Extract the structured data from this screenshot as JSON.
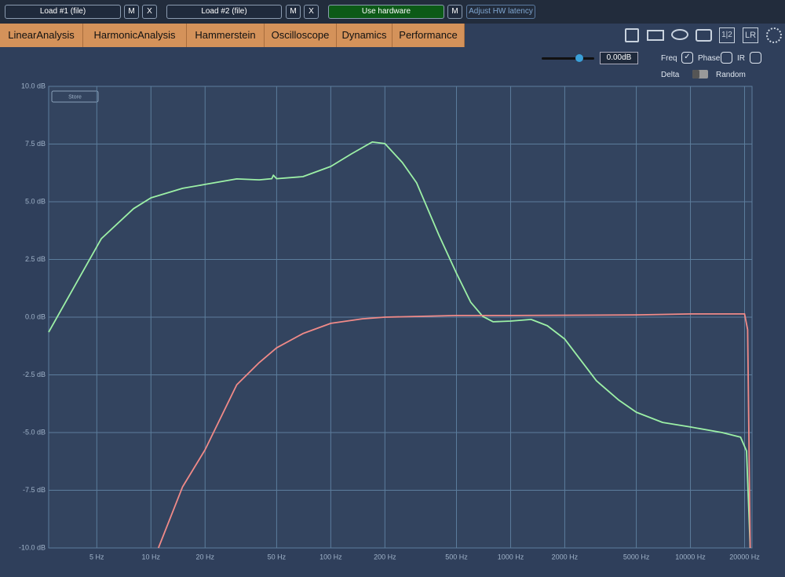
{
  "toolbar": {
    "buttons": [
      "Load #1 (file)",
      "M",
      "X",
      "Load #2 (file)",
      "M",
      "X",
      "Use hardware",
      "M",
      "Adjust HW latency"
    ]
  },
  "tabs": [
    "LinearAnalysis",
    "HarmonicAnalysis",
    "Hammerstein",
    "Oscilloscope",
    "Dynamics",
    "Performance"
  ],
  "icons": [
    "1|2",
    "LR"
  ],
  "controls": {
    "gain": "0.00dB",
    "checkboxes": [
      {
        "label": "Freq",
        "checked": true
      },
      {
        "label": "Phase",
        "checked": false
      },
      {
        "label": "IR",
        "checked": false
      }
    ],
    "delta": "Delta",
    "random": "Random"
  },
  "store_button": "Store",
  "chart_data": {
    "type": "line",
    "log_x": true,
    "grid": true,
    "xlim": [
      2.7,
      22000
    ],
    "ylim": [
      -10,
      10
    ],
    "xticks": [
      {
        "value": 5,
        "label": "5 Hz"
      },
      {
        "value": 10,
        "label": "10 Hz"
      },
      {
        "value": 20,
        "label": "20 Hz"
      },
      {
        "value": 50,
        "label": "50 Hz"
      },
      {
        "value": 100,
        "label": "100 Hz"
      },
      {
        "value": 200,
        "label": "200 Hz"
      },
      {
        "value": 500,
        "label": "500 Hz"
      },
      {
        "value": 1000,
        "label": "1000 Hz"
      },
      {
        "value": 2000,
        "label": "2000 Hz"
      },
      {
        "value": 5000,
        "label": "5000 Hz"
      },
      {
        "value": 10000,
        "label": "10000 Hz"
      },
      {
        "value": 20000,
        "label": "20000 Hz"
      }
    ],
    "yticks": [
      {
        "value": 10,
        "label": "10.0 dB"
      },
      {
        "value": 7.5,
        "label": "7.5 dB"
      },
      {
        "value": 5,
        "label": "5.0 dB"
      },
      {
        "value": 2.5,
        "label": "2.5 dB"
      },
      {
        "value": 0,
        "label": "0.0 dB"
      },
      {
        "value": -2.5,
        "label": "-2.5 dB"
      },
      {
        "value": -5,
        "label": "-5.0 dB"
      },
      {
        "value": -7.5,
        "label": "-7.5 dB"
      },
      {
        "value": -10,
        "label": "-10.0 dB"
      }
    ],
    "series": [
      {
        "color": "#9cf0a6",
        "x": [
          2.7,
          5.3,
          8,
          10,
          15,
          20,
          30,
          40,
          47,
          48,
          50,
          70,
          100,
          130,
          170,
          200,
          250,
          300,
          400,
          500,
          600,
          700,
          800,
          1000,
          1300,
          1600,
          2000,
          3000,
          4000,
          5000,
          7000,
          10000,
          15000,
          19000,
          20500,
          21500
        ],
        "values": [
          -0.65,
          3.4,
          4.7,
          5.17,
          5.58,
          5.75,
          5.99,
          5.95,
          6.0,
          6.15,
          6.0,
          6.09,
          6.53,
          7.07,
          7.59,
          7.52,
          6.7,
          5.82,
          3.54,
          1.9,
          0.65,
          0.03,
          -0.2,
          -0.17,
          -0.1,
          -0.37,
          -0.95,
          -2.76,
          -3.6,
          -4.12,
          -4.56,
          -4.76,
          -5.0,
          -5.2,
          -5.8,
          -10
        ]
      },
      {
        "color": "#f08a88",
        "x": [
          11,
          15,
          20,
          30,
          40,
          50,
          70,
          100,
          150,
          200,
          500,
          1000,
          5000,
          10000,
          20000,
          20800,
          21500
        ],
        "values": [
          -10,
          -7.35,
          -5.75,
          -2.93,
          -1.97,
          -1.33,
          -0.71,
          -0.27,
          -0.07,
          0.0,
          0.07,
          0.07,
          0.1,
          0.14,
          0.14,
          -0.54,
          -10
        ]
      }
    ]
  }
}
